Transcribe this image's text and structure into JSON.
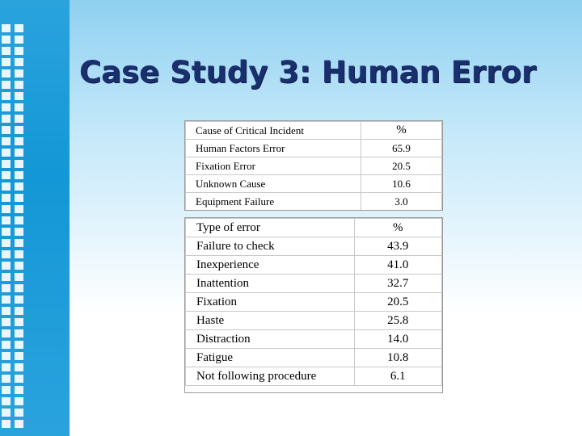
{
  "slide": {
    "title": "Case Study 3: Human Error"
  },
  "table1": {
    "header": [
      "Cause of Critical Incident",
      "%"
    ],
    "rows": [
      [
        "Human Factors Error",
        "65.9"
      ],
      [
        "Fixation Error",
        "20.5"
      ],
      [
        "Unknown Cause",
        "10.6"
      ],
      [
        "Equipment Failure",
        "3.0"
      ]
    ]
  },
  "table2": {
    "header": [
      "Type of error",
      "%"
    ],
    "rows": [
      [
        "Failure to check",
        "43.9"
      ],
      [
        "Inexperience",
        "41.0"
      ],
      [
        "Inattention",
        "32.7"
      ],
      [
        "Fixation",
        "20.5"
      ],
      [
        "Haste",
        "25.8"
      ],
      [
        "Distraction",
        "14.0"
      ],
      [
        "Fatigue",
        "10.8"
      ],
      [
        "Not following procedure",
        "6.1"
      ]
    ]
  },
  "colors": {
    "title": "#1a2f6e",
    "sidebar": "#1497d6",
    "background_top": "#8fd0f0"
  }
}
